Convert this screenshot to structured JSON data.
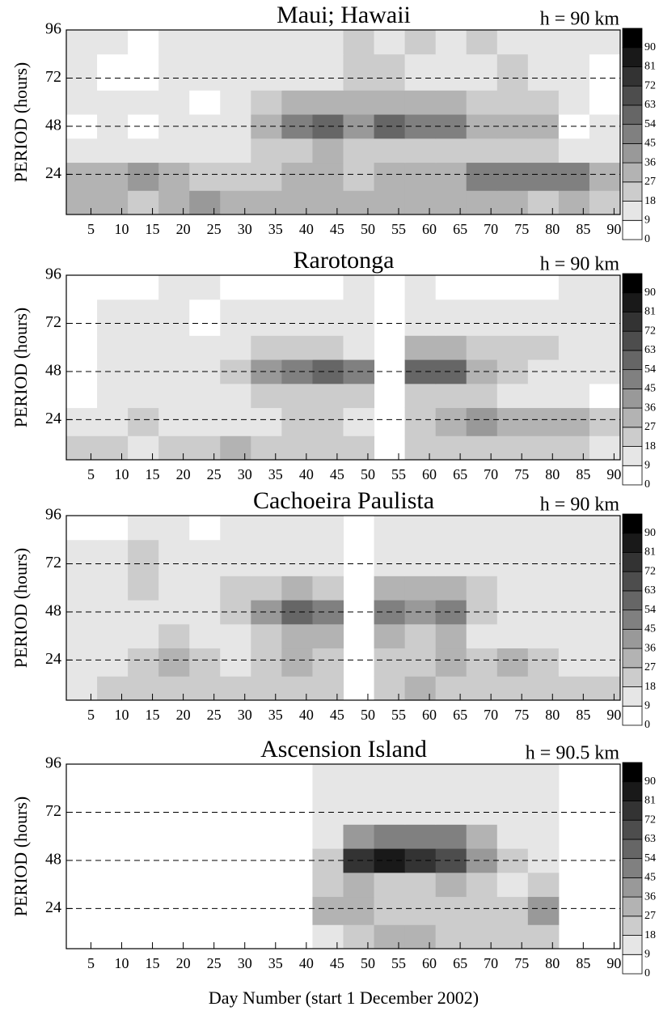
{
  "chart_data": [
    {
      "type": "heatmap",
      "title": "Maui; Hawaii",
      "annotation": "h = 90 km",
      "ylabel": "PERIOD (hours)",
      "xlim": [
        1,
        91
      ],
      "ylim": [
        4,
        96
      ],
      "xticks": [
        5,
        10,
        15,
        20,
        25,
        30,
        35,
        40,
        45,
        50,
        55,
        60,
        65,
        70,
        75,
        80,
        85,
        90
      ],
      "yticks": [
        24,
        48,
        72,
        96
      ],
      "grid": "dashed",
      "xbins": [
        1,
        6,
        11,
        16,
        21,
        26,
        31,
        36,
        41,
        46,
        51,
        56,
        61,
        66,
        71,
        76,
        81,
        86,
        91
      ],
      "ybins": [
        4,
        16,
        30,
        42,
        54,
        66,
        84,
        96
      ],
      "z": [
        [
          30,
          35,
          25,
          35,
          40,
          30,
          35,
          30,
          35,
          30,
          35,
          30,
          30,
          30,
          30,
          25,
          30,
          25
        ],
        [
          30,
          35,
          40,
          30,
          25,
          20,
          20,
          30,
          30,
          25,
          35,
          30,
          35,
          45,
          50,
          45,
          45,
          35
        ],
        [
          15,
          15,
          15,
          15,
          10,
          10,
          25,
          25,
          30,
          20,
          25,
          25,
          20,
          20,
          20,
          25,
          15,
          10
        ],
        [
          5,
          15,
          5,
          10,
          10,
          15,
          30,
          50,
          55,
          40,
          55,
          45,
          45,
          35,
          30,
          30,
          5,
          10
        ],
        [
          10,
          10,
          10,
          10,
          5,
          10,
          20,
          30,
          30,
          30,
          35,
          30,
          30,
          25,
          25,
          20,
          15,
          5
        ],
        [
          10,
          5,
          5,
          10,
          10,
          10,
          10,
          15,
          15,
          20,
          20,
          15,
          15,
          15,
          20,
          15,
          10,
          5
        ],
        [
          15,
          10,
          5,
          10,
          15,
          15,
          10,
          10,
          15,
          20,
          15,
          20,
          15,
          20,
          15,
          10,
          10,
          10
        ]
      ],
      "zlim": [
        0,
        99
      ],
      "zticks": [
        0,
        9,
        18,
        27,
        36,
        45,
        54,
        63,
        72,
        81,
        90
      ]
    },
    {
      "type": "heatmap",
      "title": "Rarotonga",
      "annotation": "h = 90 km",
      "ylabel": "PERIOD (hours)",
      "xlim": [
        1,
        91
      ],
      "ylim": [
        4,
        96
      ],
      "xticks": [
        5,
        10,
        15,
        20,
        25,
        30,
        35,
        40,
        45,
        50,
        55,
        60,
        65,
        70,
        75,
        80,
        85,
        90
      ],
      "yticks": [
        24,
        48,
        72,
        96
      ],
      "grid": "dashed",
      "xbins": [
        1,
        6,
        11,
        16,
        21,
        26,
        31,
        36,
        41,
        46,
        51,
        56,
        61,
        66,
        71,
        76,
        81,
        86,
        91
      ],
      "ybins": [
        4,
        16,
        30,
        42,
        54,
        66,
        84,
        96
      ],
      "z": [
        [
          20,
          25,
          15,
          20,
          20,
          30,
          25,
          25,
          25,
          20,
          null,
          20,
          20,
          25,
          25,
          25,
          20,
          15
        ],
        [
          10,
          10,
          20,
          15,
          15,
          15,
          15,
          20,
          20,
          15,
          null,
          20,
          35,
          40,
          35,
          30,
          30,
          25
        ],
        [
          5,
          15,
          10,
          10,
          10,
          15,
          20,
          20,
          25,
          20,
          null,
          25,
          25,
          25,
          15,
          15,
          10,
          5
        ],
        [
          5,
          15,
          15,
          10,
          10,
          25,
          40,
          50,
          55,
          45,
          null,
          55,
          60,
          35,
          25,
          15,
          10,
          10
        ],
        [
          5,
          10,
          15,
          10,
          10,
          15,
          25,
          25,
          25,
          15,
          null,
          30,
          35,
          25,
          20,
          20,
          10,
          10
        ],
        [
          5,
          10,
          10,
          10,
          5,
          10,
          15,
          15,
          15,
          15,
          null,
          15,
          15,
          10,
          15,
          10,
          10,
          10
        ],
        [
          5,
          5,
          5,
          10,
          15,
          5,
          5,
          5,
          5,
          10,
          null,
          10,
          5,
          5,
          5,
          5,
          15,
          15
        ]
      ],
      "zlim": [
        0,
        99
      ],
      "zticks": [
        0,
        9,
        18,
        27,
        36,
        45,
        54,
        63,
        72,
        81,
        90
      ]
    },
    {
      "type": "heatmap",
      "title": "Cachoeira Paulista",
      "annotation": "h = 90 km",
      "ylabel": "PERIOD (hours)",
      "xlim": [
        1,
        91
      ],
      "ylim": [
        4,
        96
      ],
      "xticks": [
        5,
        10,
        15,
        20,
        25,
        30,
        35,
        40,
        45,
        50,
        55,
        60,
        65,
        70,
        75,
        80,
        85,
        90
      ],
      "yticks": [
        24,
        48,
        72,
        96
      ],
      "grid": "dashed",
      "xbins": [
        1,
        6,
        11,
        16,
        21,
        26,
        31,
        36,
        41,
        46,
        51,
        56,
        61,
        66,
        71,
        76,
        81,
        86,
        91
      ],
      "ybins": [
        4,
        16,
        30,
        42,
        54,
        66,
        84,
        96
      ],
      "z": [
        [
          15,
          20,
          20,
          20,
          25,
          20,
          25,
          25,
          25,
          null,
          25,
          30,
          25,
          25,
          25,
          25,
          20,
          20
        ],
        [
          10,
          10,
          20,
          35,
          20,
          15,
          25,
          35,
          25,
          null,
          20,
          25,
          30,
          25,
          30,
          20,
          15,
          15
        ],
        [
          10,
          15,
          15,
          20,
          15,
          15,
          25,
          30,
          35,
          null,
          30,
          25,
          30,
          15,
          15,
          15,
          10,
          10
        ],
        [
          10,
          15,
          15,
          15,
          15,
          25,
          40,
          55,
          45,
          null,
          50,
          40,
          50,
          25,
          15,
          10,
          10,
          10
        ],
        [
          10,
          15,
          25,
          15,
          15,
          20,
          25,
          30,
          25,
          null,
          30,
          30,
          30,
          20,
          15,
          10,
          10,
          10
        ],
        [
          10,
          15,
          25,
          15,
          10,
          10,
          10,
          15,
          10,
          null,
          15,
          15,
          15,
          10,
          10,
          10,
          10,
          10
        ],
        [
          0,
          5,
          10,
          10,
          5,
          10,
          10,
          10,
          10,
          null,
          15,
          10,
          10,
          10,
          10,
          10,
          10,
          10
        ]
      ],
      "zlim": [
        0,
        99
      ],
      "zticks": [
        0,
        9,
        18,
        27,
        36,
        45,
        54,
        63,
        72,
        81,
        90
      ]
    },
    {
      "type": "heatmap",
      "title": "Ascension Island",
      "annotation": "h = 90.5 km",
      "ylabel": "PERIOD (hours)",
      "xlabel": "Day Number (start 1 December 2002)",
      "xlim": [
        1,
        91
      ],
      "ylim": [
        4,
        96
      ],
      "xticks": [
        5,
        10,
        15,
        20,
        25,
        30,
        35,
        40,
        45,
        50,
        55,
        60,
        65,
        70,
        75,
        80,
        85,
        90
      ],
      "yticks": [
        24,
        48,
        72,
        96
      ],
      "grid": "dashed",
      "xbins": [
        1,
        6,
        11,
        16,
        21,
        26,
        31,
        36,
        41,
        46,
        51,
        56,
        61,
        66,
        71,
        76,
        81,
        86,
        91
      ],
      "ybins": [
        4,
        16,
        30,
        42,
        54,
        66,
        84,
        96
      ],
      "z": [
        [
          null,
          null,
          null,
          null,
          null,
          null,
          null,
          null,
          15,
          25,
          30,
          30,
          25,
          25,
          20,
          25,
          null,
          null
        ],
        [
          null,
          null,
          null,
          null,
          null,
          null,
          null,
          null,
          30,
          30,
          25,
          20,
          25,
          20,
          20,
          40,
          null,
          null
        ],
        [
          null,
          null,
          null,
          null,
          null,
          null,
          null,
          null,
          20,
          30,
          25,
          25,
          30,
          20,
          15,
          25,
          null,
          null
        ],
        [
          null,
          null,
          null,
          null,
          null,
          null,
          null,
          null,
          25,
          75,
          85,
          75,
          65,
          40,
          20,
          15,
          null,
          null
        ],
        [
          null,
          null,
          null,
          null,
          null,
          null,
          null,
          null,
          15,
          40,
          45,
          45,
          45,
          30,
          10,
          10,
          null,
          null
        ],
        [
          null,
          null,
          null,
          null,
          null,
          null,
          null,
          null,
          10,
          15,
          15,
          15,
          15,
          10,
          10,
          10,
          null,
          null
        ],
        [
          null,
          null,
          null,
          null,
          null,
          null,
          null,
          null,
          10,
          10,
          10,
          10,
          10,
          10,
          10,
          10,
          null,
          null
        ]
      ],
      "zlim": [
        0,
        99
      ],
      "zticks": [
        0,
        9,
        18,
        27,
        36,
        45,
        54,
        63,
        72,
        81,
        90
      ]
    }
  ]
}
